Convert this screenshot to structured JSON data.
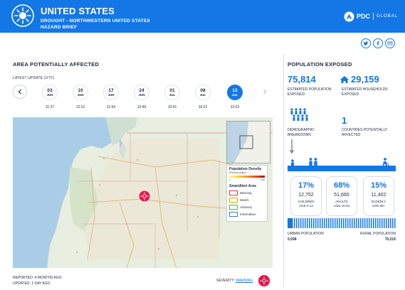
{
  "header": {
    "country": "UNITED STATES",
    "hazard_title": "DROUGHT - NORTHWESTERN UNITED STATES",
    "brief_label": "HAZARD BRIEF",
    "brand": "PDC",
    "brand_global": "GLOBAL",
    "share_icons": [
      "twitter-icon",
      "facebook-icon",
      "email-icon"
    ]
  },
  "area": {
    "title": "AREA POTENTIALLY AFFECTED",
    "latest_update_label": "LATEST UPDATE (UTC)",
    "dates": [
      {
        "day": "03",
        "month": "JUN",
        "time": "11:27",
        "active": false
      },
      {
        "day": "10",
        "month": "JUN",
        "time": "12:21",
        "active": false
      },
      {
        "day": "17",
        "month": "JUN",
        "time": "11:54",
        "active": false
      },
      {
        "day": "24",
        "month": "JUN",
        "time": "12:49",
        "active": false
      },
      {
        "day": "01",
        "month": "JUL",
        "time": "10:41",
        "active": false
      },
      {
        "day": "08",
        "month": "JUL",
        "time": "16:22",
        "active": false
      },
      {
        "day": "13",
        "month": "JUL",
        "time": "13:22",
        "active": true
      }
    ],
    "legend": {
      "title": "Population Density",
      "subtitle": "(Persons/sqkm)",
      "tick_low": "0",
      "tick_high": ">768",
      "smartalert_title": "SmartAlert Area",
      "items": [
        {
          "label": "Warning",
          "color": "#e8323c"
        },
        {
          "label": "Watch",
          "color": "#f29c11"
        },
        {
          "label": "Advisory",
          "color": "#4cb848"
        },
        {
          "label": "Information",
          "color": "#3a7bd5"
        }
      ]
    },
    "reported": "REPORTED: 4 MONTHS AGO",
    "updated": "UPDATED: 1 DAY AGO",
    "severity_label": "SEVERITY:",
    "severity_value": "WARNING",
    "severity_color": "#e4184c"
  },
  "population": {
    "title": "POPULATION EXPOSED",
    "total": "75,814",
    "total_label_1": "ESTIMATED POPULATION",
    "total_label_2": "EXPOSED",
    "households": "29,159",
    "households_label_1": "ESTIMATED HOUSEHOLDS",
    "households_label_2": "EXPOSED",
    "demographic_label_1": "DEMOGRAPHIC",
    "demographic_label_2": "BREAKDOWN",
    "countries": "1",
    "countries_label_1": "COUNTRIES POTENTIALLY",
    "countries_label_2": "AFFECTED",
    "groups": [
      {
        "pct": "17%",
        "count": "12,752",
        "cat": "CHILDREN",
        "age": "AGE 0-14",
        "fraction": 0.17
      },
      {
        "pct": "68%",
        "count": "51,660",
        "cat": "ADULTS",
        "age": "AGE 15-64",
        "fraction": 0.68
      },
      {
        "pct": "15%",
        "count": "11,402",
        "cat": "ELDERLY",
        "age": "AGE 65+",
        "fraction": 0.15
      }
    ],
    "urban_label": "URBAN POPULATION",
    "urban_value": "5,598",
    "rural_label": "RURAL POPULATION",
    "rural_value": "70,216",
    "accent": "#1477e6"
  }
}
